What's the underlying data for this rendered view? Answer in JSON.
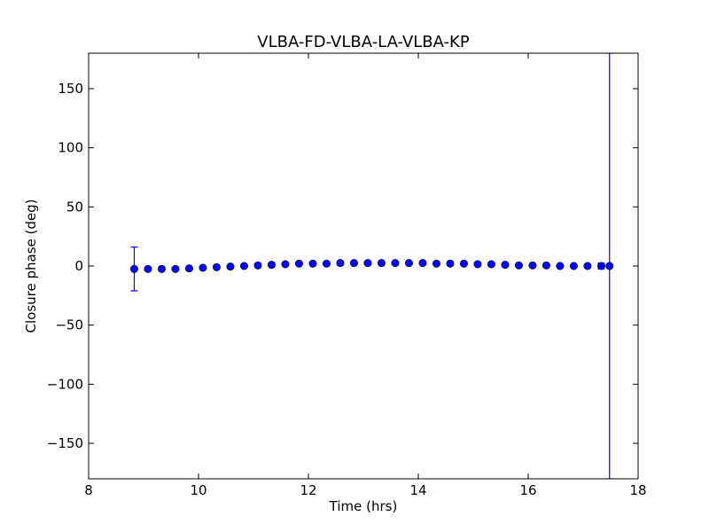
{
  "chart_data": {
    "type": "scatter",
    "title": "VLBA-FD-VLBA-LA-VLBA-KP",
    "xlabel": "Time (hrs)",
    "ylabel": "Closure phase (deg)",
    "xlim": [
      8,
      18
    ],
    "ylim": [
      -180,
      180
    ],
    "xticks": [
      8,
      10,
      12,
      14,
      16,
      18
    ],
    "yticks": [
      -150,
      -100,
      -50,
      0,
      50,
      100,
      150
    ],
    "yticklabels": [
      "−150",
      "−100",
      "−50",
      "0",
      "50",
      "100",
      "150"
    ],
    "grid": false,
    "marker_color": "#0000ff",
    "errorbar_color": "#0000ff",
    "points": [
      {
        "x": 8.83,
        "y": -2.5,
        "err": 18.5
      },
      {
        "x": 9.08,
        "y": -2.5,
        "err": 0
      },
      {
        "x": 9.33,
        "y": -2.5,
        "err": 0
      },
      {
        "x": 9.58,
        "y": -2.5,
        "err": 0
      },
      {
        "x": 9.83,
        "y": -2.0,
        "err": 0
      },
      {
        "x": 10.08,
        "y": -1.5,
        "err": 0
      },
      {
        "x": 10.33,
        "y": -1.0,
        "err": 0
      },
      {
        "x": 10.58,
        "y": -0.5,
        "err": 0
      },
      {
        "x": 10.83,
        "y": 0.0,
        "err": 0
      },
      {
        "x": 11.08,
        "y": 0.5,
        "err": 0
      },
      {
        "x": 11.33,
        "y": 1.0,
        "err": 0
      },
      {
        "x": 11.58,
        "y": 1.5,
        "err": 0
      },
      {
        "x": 11.83,
        "y": 2.0,
        "err": 0
      },
      {
        "x": 12.08,
        "y": 2.0,
        "err": 0
      },
      {
        "x": 12.33,
        "y": 2.0,
        "err": 0
      },
      {
        "x": 12.58,
        "y": 2.5,
        "err": 0
      },
      {
        "x": 12.83,
        "y": 2.5,
        "err": 0
      },
      {
        "x": 13.08,
        "y": 2.5,
        "err": 0
      },
      {
        "x": 13.33,
        "y": 2.5,
        "err": 0
      },
      {
        "x": 13.58,
        "y": 2.5,
        "err": 0
      },
      {
        "x": 13.83,
        "y": 2.5,
        "err": 0
      },
      {
        "x": 14.08,
        "y": 2.5,
        "err": 0
      },
      {
        "x": 14.33,
        "y": 2.0,
        "err": 0
      },
      {
        "x": 14.58,
        "y": 2.0,
        "err": 0
      },
      {
        "x": 14.83,
        "y": 2.0,
        "err": 0
      },
      {
        "x": 15.08,
        "y": 1.5,
        "err": 0
      },
      {
        "x": 15.33,
        "y": 1.5,
        "err": 0
      },
      {
        "x": 15.58,
        "y": 1.0,
        "err": 0
      },
      {
        "x": 15.83,
        "y": 0.5,
        "err": 0
      },
      {
        "x": 16.08,
        "y": 0.5,
        "err": 0
      },
      {
        "x": 16.33,
        "y": 0.5,
        "err": 0
      },
      {
        "x": 16.58,
        "y": 0.0,
        "err": 0
      },
      {
        "x": 16.83,
        "y": 0.0,
        "err": 0
      },
      {
        "x": 17.08,
        "y": 0.0,
        "err": 0
      },
      {
        "x": 17.33,
        "y": 0.0,
        "err": 2.5
      },
      {
        "x": 17.48,
        "y": 0.0,
        "err": 180
      }
    ]
  }
}
